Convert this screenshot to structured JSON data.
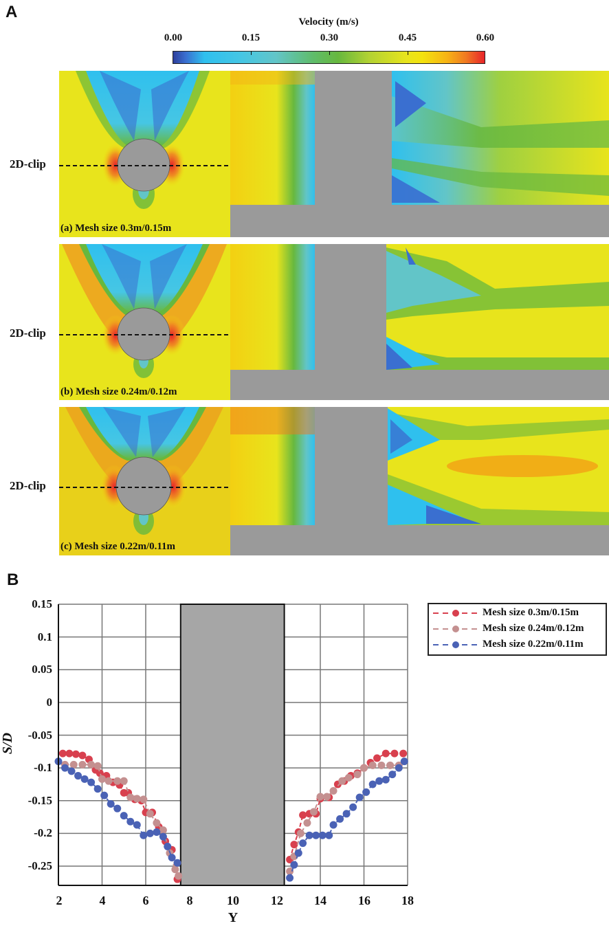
{
  "figure": {
    "panel_a_letter": "A",
    "panel_b_letter": "B"
  },
  "colorbar": {
    "title": "Velocity (m/s)",
    "ticks": [
      "0.00",
      "0.15",
      "0.30",
      "0.45",
      "0.60"
    ],
    "colors": [
      "#2e3f9c",
      "#2fc0ee",
      "#62c5c8",
      "#67b83e",
      "#f3e20e",
      "#f07a22",
      "#e8242a"
    ]
  },
  "simulations": [
    {
      "clip_label": "2D-clip",
      "mesh_label": "(a) Mesh size 0.3m/0.15m"
    },
    {
      "clip_label": "2D-clip",
      "mesh_label": "(b) Mesh size 0.24m/0.12m"
    },
    {
      "clip_label": "2D-clip",
      "mesh_label": "(c) Mesh size 0.22m/0.11m"
    }
  ],
  "chart_data": {
    "type": "scatter",
    "title": "",
    "xlabel": "Y",
    "ylabel": "S/D",
    "xlim": [
      2,
      18
    ],
    "ylim": [
      -0.28,
      0.15
    ],
    "xticks": [
      "2",
      "4",
      "6",
      "8",
      "10",
      "12",
      "14",
      "16",
      "18"
    ],
    "yticks": [
      "0.15",
      "0.1",
      "0.05",
      "0",
      "-0.05",
      "-0.1",
      "-0.15",
      "-0.2",
      "-0.25"
    ],
    "grid": true,
    "legend_position": "outside right top",
    "obstacle": {
      "x0": 7.6,
      "x1": 12.35,
      "color": "#a6a6a6"
    },
    "series": [
      {
        "name": "Mesh size 0.3m/0.15m",
        "color": "#d8404e",
        "x": [
          2.2,
          2.5,
          2.8,
          3.1,
          3.4,
          3.7,
          3.9,
          4.2,
          4.5,
          4.8,
          5.0,
          5.2,
          5.5,
          5.8,
          6.0,
          6.3,
          6.6,
          6.9,
          7.2,
          7.45,
          12.6,
          12.8,
          13.0,
          13.2,
          13.5,
          13.8,
          14.0,
          14.4,
          14.8,
          15.1,
          15.4,
          15.7,
          16.0,
          16.3,
          16.6,
          17.0,
          17.4,
          17.8
        ],
        "y": [
          -0.078,
          -0.078,
          -0.079,
          -0.081,
          -0.087,
          -0.103,
          -0.108,
          -0.112,
          -0.122,
          -0.126,
          -0.138,
          -0.138,
          -0.148,
          -0.15,
          -0.168,
          -0.168,
          -0.19,
          -0.212,
          -0.225,
          -0.27,
          -0.24,
          -0.217,
          -0.198,
          -0.172,
          -0.17,
          -0.17,
          -0.147,
          -0.145,
          -0.125,
          -0.12,
          -0.112,
          -0.108,
          -0.1,
          -0.092,
          -0.085,
          -0.078,
          -0.078,
          -0.078
        ]
      },
      {
        "name": "Mesh size 0.24m/0.12m",
        "color": "#c49090",
        "x": [
          2.3,
          2.7,
          3.1,
          3.5,
          3.8,
          4.0,
          4.3,
          4.7,
          5.0,
          5.3,
          5.6,
          5.9,
          6.2,
          6.5,
          6.8,
          7.1,
          7.35,
          7.5,
          12.6,
          12.8,
          13.1,
          13.4,
          13.7,
          14.0,
          14.3,
          14.6,
          15.0,
          15.3,
          15.7,
          16.0,
          16.4,
          16.8,
          17.2,
          17.6
        ],
        "y": [
          -0.095,
          -0.095,
          -0.095,
          -0.095,
          -0.097,
          -0.117,
          -0.12,
          -0.12,
          -0.12,
          -0.145,
          -0.147,
          -0.148,
          -0.17,
          -0.184,
          -0.195,
          -0.23,
          -0.255,
          -0.265,
          -0.258,
          -0.235,
          -0.2,
          -0.184,
          -0.167,
          -0.144,
          -0.144,
          -0.135,
          -0.12,
          -0.115,
          -0.11,
          -0.1,
          -0.096,
          -0.096,
          -0.096,
          -0.096
        ]
      },
      {
        "name": "Mesh size 0.22m/0.11m",
        "color": "#4a62b5",
        "x": [
          2.0,
          2.3,
          2.6,
          2.9,
          3.2,
          3.5,
          3.8,
          4.1,
          4.4,
          4.7,
          5.0,
          5.3,
          5.6,
          5.9,
          6.2,
          6.5,
          6.8,
          7.0,
          7.2,
          7.45,
          12.6,
          12.8,
          13.0,
          13.2,
          13.5,
          13.8,
          14.1,
          14.4,
          14.6,
          14.9,
          15.2,
          15.5,
          15.8,
          16.1,
          16.4,
          16.7,
          17.0,
          17.3,
          17.6,
          17.85
        ],
        "y": [
          -0.09,
          -0.1,
          -0.105,
          -0.112,
          -0.117,
          -0.122,
          -0.132,
          -0.142,
          -0.155,
          -0.162,
          -0.173,
          -0.182,
          -0.187,
          -0.203,
          -0.2,
          -0.198,
          -0.205,
          -0.22,
          -0.237,
          -0.245,
          -0.268,
          -0.248,
          -0.23,
          -0.215,
          -0.203,
          -0.203,
          -0.203,
          -0.203,
          -0.187,
          -0.178,
          -0.17,
          -0.16,
          -0.145,
          -0.137,
          -0.125,
          -0.12,
          -0.118,
          -0.11,
          -0.1,
          -0.09
        ]
      }
    ]
  }
}
